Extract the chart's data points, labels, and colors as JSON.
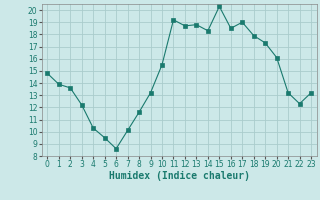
{
  "x": [
    0,
    1,
    2,
    3,
    4,
    5,
    6,
    7,
    8,
    9,
    10,
    11,
    12,
    13,
    14,
    15,
    16,
    17,
    18,
    19,
    20,
    21,
    22,
    23
  ],
  "y": [
    14.8,
    13.9,
    13.6,
    12.2,
    10.3,
    9.5,
    8.6,
    10.1,
    11.6,
    13.2,
    15.5,
    19.2,
    18.7,
    18.8,
    18.3,
    20.3,
    18.5,
    19.0,
    17.9,
    17.3,
    16.1,
    13.2,
    12.3,
    13.2
  ],
  "line_color": "#1a7a6e",
  "marker": "s",
  "marker_size": 2.5,
  "bg_color": "#cce8e8",
  "grid_color": "#aacccc",
  "xlabel": "Humidex (Indice chaleur)",
  "ylim": [
    8,
    20.5
  ],
  "xlim": [
    -0.5,
    23.5
  ],
  "yticks": [
    8,
    9,
    10,
    11,
    12,
    13,
    14,
    15,
    16,
    17,
    18,
    19,
    20
  ],
  "xticks": [
    0,
    1,
    2,
    3,
    4,
    5,
    6,
    7,
    8,
    9,
    10,
    11,
    12,
    13,
    14,
    15,
    16,
    17,
    18,
    19,
    20,
    21,
    22,
    23
  ],
  "tick_fontsize": 5.5,
  "xlabel_fontsize": 7.0
}
